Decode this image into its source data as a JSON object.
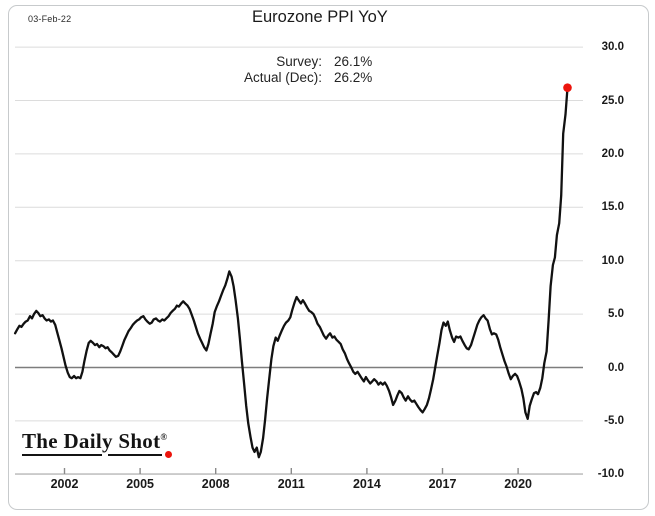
{
  "header": {
    "date": "03-Feb-22",
    "title": "Eurozone PPI YoY"
  },
  "annotation": {
    "lines": [
      {
        "label": "Survey:",
        "value": "26.1%"
      },
      {
        "label": "Actual (Dec):",
        "value": "26.2%"
      }
    ]
  },
  "logo": {
    "text": "The Daily Shot",
    "registered": "®"
  },
  "colors": {
    "line": "#111111",
    "end_dot": "#ec140c",
    "grid": "#dcdcdc",
    "zero_line": "#7d7d7d",
    "axis_line": "#b5b5b5",
    "tick_mark": "#8a8a8a",
    "text": "#1d1d1d"
  },
  "chart_data": {
    "type": "line",
    "title": "Eurozone PPI YoY",
    "xlabel": "",
    "ylabel": "",
    "ylim": [
      -10,
      30
    ],
    "xlim_years": [
      2000.0,
      2022.2
    ],
    "grid": "horizontal",
    "legend": "none",
    "y_ticks": [
      {
        "label": "30.0",
        "value": 30
      },
      {
        "label": "25.0",
        "value": 25
      },
      {
        "label": "20.0",
        "value": 20
      },
      {
        "label": "15.0",
        "value": 15
      },
      {
        "label": "10.0",
        "value": 10
      },
      {
        "label": "5.0",
        "value": 5
      },
      {
        "label": "0.0",
        "value": 0
      },
      {
        "label": "-5.0",
        "value": -5
      },
      {
        "label": "-10.0",
        "value": -10
      }
    ],
    "x_ticks": [
      {
        "label": "2002",
        "year": 2002
      },
      {
        "label": "2005",
        "year": 2005
      },
      {
        "label": "2008",
        "year": 2008
      },
      {
        "label": "2011",
        "year": 2011
      },
      {
        "label": "2014",
        "year": 2014
      },
      {
        "label": "2017",
        "year": 2017
      },
      {
        "label": "2020",
        "year": 2020
      }
    ],
    "end_marker": {
      "year": 2021.96,
      "value": 26.2
    },
    "series": [
      {
        "name": "Eurozone PPI YoY (%)",
        "points": [
          [
            2000.04,
            3.2
          ],
          [
            2000.13,
            3.6
          ],
          [
            2000.21,
            3.9
          ],
          [
            2000.29,
            3.8
          ],
          [
            2000.38,
            4.1
          ],
          [
            2000.46,
            4.3
          ],
          [
            2000.54,
            4.4
          ],
          [
            2000.63,
            4.8
          ],
          [
            2000.71,
            4.6
          ],
          [
            2000.79,
            5.0
          ],
          [
            2000.88,
            5.3
          ],
          [
            2000.96,
            5.1
          ],
          [
            2001.04,
            4.8
          ],
          [
            2001.13,
            4.9
          ],
          [
            2001.21,
            4.6
          ],
          [
            2001.29,
            4.4
          ],
          [
            2001.38,
            4.5
          ],
          [
            2001.46,
            4.3
          ],
          [
            2001.54,
            4.4
          ],
          [
            2001.63,
            4.0
          ],
          [
            2001.71,
            3.3
          ],
          [
            2001.79,
            2.6
          ],
          [
            2001.88,
            1.8
          ],
          [
            2001.96,
            1.0
          ],
          [
            2002.04,
            0.2
          ],
          [
            2002.13,
            -0.5
          ],
          [
            2002.21,
            -0.9
          ],
          [
            2002.29,
            -1.0
          ],
          [
            2002.38,
            -0.8
          ],
          [
            2002.46,
            -1.0
          ],
          [
            2002.54,
            -0.9
          ],
          [
            2002.63,
            -1.0
          ],
          [
            2002.71,
            -0.4
          ],
          [
            2002.79,
            0.6
          ],
          [
            2002.88,
            1.6
          ],
          [
            2002.96,
            2.3
          ],
          [
            2003.04,
            2.5
          ],
          [
            2003.13,
            2.3
          ],
          [
            2003.21,
            2.1
          ],
          [
            2003.29,
            2.2
          ],
          [
            2003.38,
            1.9
          ],
          [
            2003.46,
            2.1
          ],
          [
            2003.54,
            2.0
          ],
          [
            2003.63,
            1.8
          ],
          [
            2003.71,
            1.9
          ],
          [
            2003.79,
            1.6
          ],
          [
            2003.88,
            1.4
          ],
          [
            2003.96,
            1.2
          ],
          [
            2004.04,
            1.0
          ],
          [
            2004.13,
            1.1
          ],
          [
            2004.21,
            1.5
          ],
          [
            2004.29,
            2.0
          ],
          [
            2004.38,
            2.6
          ],
          [
            2004.46,
            3.0
          ],
          [
            2004.54,
            3.4
          ],
          [
            2004.63,
            3.7
          ],
          [
            2004.71,
            4.0
          ],
          [
            2004.79,
            4.2
          ],
          [
            2004.88,
            4.4
          ],
          [
            2004.96,
            4.5
          ],
          [
            2005.04,
            4.7
          ],
          [
            2005.13,
            4.8
          ],
          [
            2005.21,
            4.5
          ],
          [
            2005.29,
            4.3
          ],
          [
            2005.38,
            4.1
          ],
          [
            2005.46,
            4.2
          ],
          [
            2005.54,
            4.5
          ],
          [
            2005.63,
            4.6
          ],
          [
            2005.71,
            4.4
          ],
          [
            2005.79,
            4.3
          ],
          [
            2005.88,
            4.5
          ],
          [
            2005.96,
            4.4
          ],
          [
            2006.04,
            4.6
          ],
          [
            2006.13,
            4.8
          ],
          [
            2006.21,
            5.1
          ],
          [
            2006.29,
            5.3
          ],
          [
            2006.38,
            5.5
          ],
          [
            2006.46,
            5.8
          ],
          [
            2006.54,
            5.7
          ],
          [
            2006.63,
            6.0
          ],
          [
            2006.71,
            6.2
          ],
          [
            2006.79,
            6.0
          ],
          [
            2006.88,
            5.8
          ],
          [
            2006.96,
            5.5
          ],
          [
            2007.04,
            5.0
          ],
          [
            2007.13,
            4.4
          ],
          [
            2007.21,
            3.8
          ],
          [
            2007.29,
            3.2
          ],
          [
            2007.38,
            2.7
          ],
          [
            2007.46,
            2.3
          ],
          [
            2007.54,
            1.9
          ],
          [
            2007.63,
            1.6
          ],
          [
            2007.71,
            2.2
          ],
          [
            2007.79,
            3.1
          ],
          [
            2007.88,
            4.1
          ],
          [
            2007.96,
            5.2
          ],
          [
            2008.04,
            5.7
          ],
          [
            2008.13,
            6.2
          ],
          [
            2008.21,
            6.7
          ],
          [
            2008.29,
            7.2
          ],
          [
            2008.38,
            7.7
          ],
          [
            2008.46,
            8.3
          ],
          [
            2008.54,
            9.0
          ],
          [
            2008.63,
            8.5
          ],
          [
            2008.71,
            7.6
          ],
          [
            2008.79,
            6.3
          ],
          [
            2008.88,
            4.6
          ],
          [
            2008.96,
            2.7
          ],
          [
            2009.04,
            0.6
          ],
          [
            2009.13,
            -1.6
          ],
          [
            2009.21,
            -3.6
          ],
          [
            2009.29,
            -5.2
          ],
          [
            2009.38,
            -6.5
          ],
          [
            2009.46,
            -7.5
          ],
          [
            2009.54,
            -7.9
          ],
          [
            2009.63,
            -7.5
          ],
          [
            2009.71,
            -8.4
          ],
          [
            2009.79,
            -7.9
          ],
          [
            2009.88,
            -6.6
          ],
          [
            2009.96,
            -4.9
          ],
          [
            2010.04,
            -2.9
          ],
          [
            2010.13,
            -0.9
          ],
          [
            2010.21,
            0.8
          ],
          [
            2010.29,
            2.0
          ],
          [
            2010.38,
            2.8
          ],
          [
            2010.46,
            2.5
          ],
          [
            2010.54,
            3.0
          ],
          [
            2010.63,
            3.5
          ],
          [
            2010.71,
            3.9
          ],
          [
            2010.79,
            4.2
          ],
          [
            2010.88,
            4.4
          ],
          [
            2010.96,
            4.7
          ],
          [
            2011.04,
            5.4
          ],
          [
            2011.13,
            6.1
          ],
          [
            2011.21,
            6.6
          ],
          [
            2011.29,
            6.3
          ],
          [
            2011.38,
            6.0
          ],
          [
            2011.46,
            6.3
          ],
          [
            2011.54,
            6.0
          ],
          [
            2011.63,
            5.6
          ],
          [
            2011.71,
            5.3
          ],
          [
            2011.79,
            5.2
          ],
          [
            2011.88,
            5.0
          ],
          [
            2011.96,
            4.6
          ],
          [
            2012.04,
            4.1
          ],
          [
            2012.13,
            3.8
          ],
          [
            2012.21,
            3.4
          ],
          [
            2012.29,
            3.0
          ],
          [
            2012.38,
            2.7
          ],
          [
            2012.46,
            3.0
          ],
          [
            2012.54,
            3.2
          ],
          [
            2012.63,
            2.8
          ],
          [
            2012.71,
            2.9
          ],
          [
            2012.79,
            2.6
          ],
          [
            2012.88,
            2.4
          ],
          [
            2012.96,
            2.2
          ],
          [
            2013.04,
            1.7
          ],
          [
            2013.13,
            1.3
          ],
          [
            2013.21,
            0.8
          ],
          [
            2013.29,
            0.4
          ],
          [
            2013.38,
            0.0
          ],
          [
            2013.46,
            -0.4
          ],
          [
            2013.54,
            -0.6
          ],
          [
            2013.63,
            -0.4
          ],
          [
            2013.71,
            -0.7
          ],
          [
            2013.79,
            -1.0
          ],
          [
            2013.88,
            -1.3
          ],
          [
            2013.96,
            -0.9
          ],
          [
            2014.04,
            -1.2
          ],
          [
            2014.13,
            -1.5
          ],
          [
            2014.21,
            -1.3
          ],
          [
            2014.29,
            -1.1
          ],
          [
            2014.38,
            -1.3
          ],
          [
            2014.46,
            -1.6
          ],
          [
            2014.54,
            -1.4
          ],
          [
            2014.63,
            -1.6
          ],
          [
            2014.71,
            -1.4
          ],
          [
            2014.79,
            -1.7
          ],
          [
            2014.88,
            -2.2
          ],
          [
            2014.96,
            -2.8
          ],
          [
            2015.04,
            -3.5
          ],
          [
            2015.13,
            -3.1
          ],
          [
            2015.21,
            -2.6
          ],
          [
            2015.29,
            -2.2
          ],
          [
            2015.38,
            -2.4
          ],
          [
            2015.46,
            -2.8
          ],
          [
            2015.54,
            -3.1
          ],
          [
            2015.63,
            -2.7
          ],
          [
            2015.71,
            -3.0
          ],
          [
            2015.79,
            -3.2
          ],
          [
            2015.88,
            -3.1
          ],
          [
            2015.96,
            -3.4
          ],
          [
            2016.04,
            -3.7
          ],
          [
            2016.13,
            -4.0
          ],
          [
            2016.21,
            -4.2
          ],
          [
            2016.29,
            -3.9
          ],
          [
            2016.38,
            -3.5
          ],
          [
            2016.46,
            -2.9
          ],
          [
            2016.54,
            -2.1
          ],
          [
            2016.63,
            -1.1
          ],
          [
            2016.71,
            0.0
          ],
          [
            2016.79,
            1.1
          ],
          [
            2016.88,
            2.3
          ],
          [
            2016.96,
            3.5
          ],
          [
            2017.04,
            4.2
          ],
          [
            2017.13,
            3.9
          ],
          [
            2017.21,
            4.3
          ],
          [
            2017.29,
            3.5
          ],
          [
            2017.38,
            2.8
          ],
          [
            2017.46,
            2.4
          ],
          [
            2017.54,
            2.9
          ],
          [
            2017.63,
            2.8
          ],
          [
            2017.71,
            2.9
          ],
          [
            2017.79,
            2.5
          ],
          [
            2017.88,
            2.1
          ],
          [
            2017.96,
            1.8
          ],
          [
            2018.04,
            1.7
          ],
          [
            2018.13,
            2.1
          ],
          [
            2018.21,
            2.7
          ],
          [
            2018.29,
            3.3
          ],
          [
            2018.38,
            4.0
          ],
          [
            2018.46,
            4.4
          ],
          [
            2018.54,
            4.7
          ],
          [
            2018.63,
            4.9
          ],
          [
            2018.71,
            4.6
          ],
          [
            2018.79,
            4.4
          ],
          [
            2018.88,
            3.6
          ],
          [
            2018.96,
            3.1
          ],
          [
            2019.04,
            3.2
          ],
          [
            2019.13,
            3.1
          ],
          [
            2019.21,
            2.6
          ],
          [
            2019.29,
            1.9
          ],
          [
            2019.38,
            1.2
          ],
          [
            2019.46,
            0.6
          ],
          [
            2019.54,
            0.1
          ],
          [
            2019.63,
            -0.6
          ],
          [
            2019.71,
            -1.1
          ],
          [
            2019.79,
            -0.8
          ],
          [
            2019.88,
            -0.6
          ],
          [
            2019.96,
            -0.8
          ],
          [
            2020.04,
            -1.3
          ],
          [
            2020.13,
            -2.0
          ],
          [
            2020.21,
            -2.9
          ],
          [
            2020.29,
            -4.2
          ],
          [
            2020.38,
            -4.8
          ],
          [
            2020.46,
            -3.6
          ],
          [
            2020.54,
            -3.0
          ],
          [
            2020.63,
            -2.4
          ],
          [
            2020.71,
            -2.3
          ],
          [
            2020.79,
            -2.5
          ],
          [
            2020.88,
            -1.9
          ],
          [
            2020.96,
            -1.0
          ],
          [
            2021.04,
            0.4
          ],
          [
            2021.13,
            1.5
          ],
          [
            2021.21,
            4.4
          ],
          [
            2021.29,
            7.6
          ],
          [
            2021.38,
            9.6
          ],
          [
            2021.46,
            10.3
          ],
          [
            2021.54,
            12.4
          ],
          [
            2021.63,
            13.5
          ],
          [
            2021.71,
            16.1
          ],
          [
            2021.79,
            21.9
          ],
          [
            2021.88,
            23.7
          ],
          [
            2021.96,
            26.2
          ]
        ]
      }
    ]
  }
}
